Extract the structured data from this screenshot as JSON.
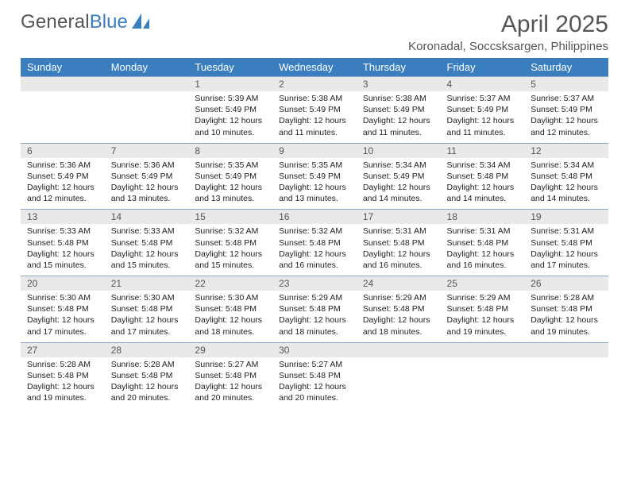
{
  "brand": {
    "a": "General",
    "b": "Blue",
    "logo_color": "#3a7ebf"
  },
  "title": "April 2025",
  "location": "Koronadal, Soccsksargen, Philippines",
  "colors": {
    "header_bg": "#3a7ebf",
    "header_text": "#ffffff",
    "daynum_bg": "#e9e9e9",
    "daynum_text": "#555555",
    "cell_text": "#222222",
    "row_divider": "#8aa9c9",
    "page_bg": "#ffffff"
  },
  "calendar": {
    "type": "table",
    "columns": [
      "Sunday",
      "Monday",
      "Tuesday",
      "Wednesday",
      "Thursday",
      "Friday",
      "Saturday"
    ],
    "col_count": 7,
    "week_count": 5,
    "label_prefixes": {
      "sunrise": "Sunrise: ",
      "sunset": "Sunset: ",
      "daylight": "Daylight: "
    },
    "weeks": [
      [
        null,
        null,
        {
          "day": "1",
          "sunrise": "5:39 AM",
          "sunset": "5:49 PM",
          "daylight": "12 hours and 10 minutes."
        },
        {
          "day": "2",
          "sunrise": "5:38 AM",
          "sunset": "5:49 PM",
          "daylight": "12 hours and 11 minutes."
        },
        {
          "day": "3",
          "sunrise": "5:38 AM",
          "sunset": "5:49 PM",
          "daylight": "12 hours and 11 minutes."
        },
        {
          "day": "4",
          "sunrise": "5:37 AM",
          "sunset": "5:49 PM",
          "daylight": "12 hours and 11 minutes."
        },
        {
          "day": "5",
          "sunrise": "5:37 AM",
          "sunset": "5:49 PM",
          "daylight": "12 hours and 12 minutes."
        }
      ],
      [
        {
          "day": "6",
          "sunrise": "5:36 AM",
          "sunset": "5:49 PM",
          "daylight": "12 hours and 12 minutes."
        },
        {
          "day": "7",
          "sunrise": "5:36 AM",
          "sunset": "5:49 PM",
          "daylight": "12 hours and 13 minutes."
        },
        {
          "day": "8",
          "sunrise": "5:35 AM",
          "sunset": "5:49 PM",
          "daylight": "12 hours and 13 minutes."
        },
        {
          "day": "9",
          "sunrise": "5:35 AM",
          "sunset": "5:49 PM",
          "daylight": "12 hours and 13 minutes."
        },
        {
          "day": "10",
          "sunrise": "5:34 AM",
          "sunset": "5:49 PM",
          "daylight": "12 hours and 14 minutes."
        },
        {
          "day": "11",
          "sunrise": "5:34 AM",
          "sunset": "5:48 PM",
          "daylight": "12 hours and 14 minutes."
        },
        {
          "day": "12",
          "sunrise": "5:34 AM",
          "sunset": "5:48 PM",
          "daylight": "12 hours and 14 minutes."
        }
      ],
      [
        {
          "day": "13",
          "sunrise": "5:33 AM",
          "sunset": "5:48 PM",
          "daylight": "12 hours and 15 minutes."
        },
        {
          "day": "14",
          "sunrise": "5:33 AM",
          "sunset": "5:48 PM",
          "daylight": "12 hours and 15 minutes."
        },
        {
          "day": "15",
          "sunrise": "5:32 AM",
          "sunset": "5:48 PM",
          "daylight": "12 hours and 15 minutes."
        },
        {
          "day": "16",
          "sunrise": "5:32 AM",
          "sunset": "5:48 PM",
          "daylight": "12 hours and 16 minutes."
        },
        {
          "day": "17",
          "sunrise": "5:31 AM",
          "sunset": "5:48 PM",
          "daylight": "12 hours and 16 minutes."
        },
        {
          "day": "18",
          "sunrise": "5:31 AM",
          "sunset": "5:48 PM",
          "daylight": "12 hours and 16 minutes."
        },
        {
          "day": "19",
          "sunrise": "5:31 AM",
          "sunset": "5:48 PM",
          "daylight": "12 hours and 17 minutes."
        }
      ],
      [
        {
          "day": "20",
          "sunrise": "5:30 AM",
          "sunset": "5:48 PM",
          "daylight": "12 hours and 17 minutes."
        },
        {
          "day": "21",
          "sunrise": "5:30 AM",
          "sunset": "5:48 PM",
          "daylight": "12 hours and 17 minutes."
        },
        {
          "day": "22",
          "sunrise": "5:30 AM",
          "sunset": "5:48 PM",
          "daylight": "12 hours and 18 minutes."
        },
        {
          "day": "23",
          "sunrise": "5:29 AM",
          "sunset": "5:48 PM",
          "daylight": "12 hours and 18 minutes."
        },
        {
          "day": "24",
          "sunrise": "5:29 AM",
          "sunset": "5:48 PM",
          "daylight": "12 hours and 18 minutes."
        },
        {
          "day": "25",
          "sunrise": "5:29 AM",
          "sunset": "5:48 PM",
          "daylight": "12 hours and 19 minutes."
        },
        {
          "day": "26",
          "sunrise": "5:28 AM",
          "sunset": "5:48 PM",
          "daylight": "12 hours and 19 minutes."
        }
      ],
      [
        {
          "day": "27",
          "sunrise": "5:28 AM",
          "sunset": "5:48 PM",
          "daylight": "12 hours and 19 minutes."
        },
        {
          "day": "28",
          "sunrise": "5:28 AM",
          "sunset": "5:48 PM",
          "daylight": "12 hours and 20 minutes."
        },
        {
          "day": "29",
          "sunrise": "5:27 AM",
          "sunset": "5:48 PM",
          "daylight": "12 hours and 20 minutes."
        },
        {
          "day": "30",
          "sunrise": "5:27 AM",
          "sunset": "5:48 PM",
          "daylight": "12 hours and 20 minutes."
        },
        null,
        null,
        null
      ]
    ]
  }
}
